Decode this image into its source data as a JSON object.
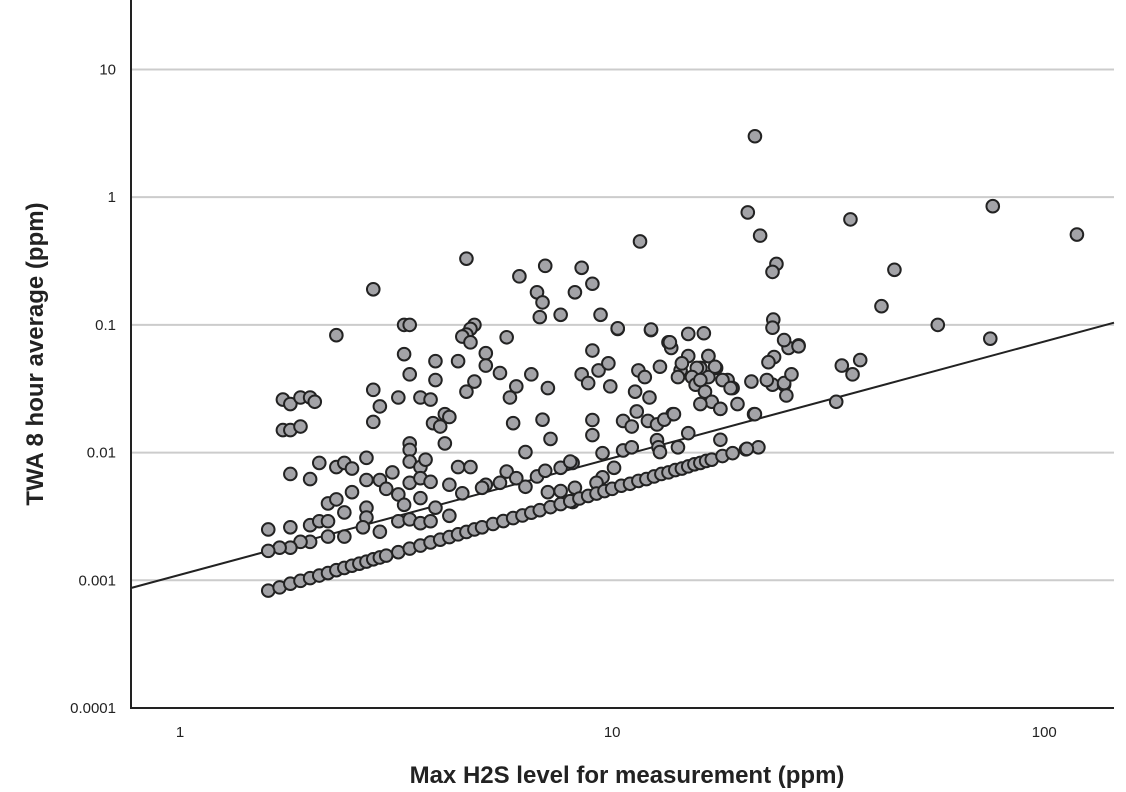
{
  "chart_data": {
    "type": "scatter",
    "title": "",
    "xlabel": "Max H2S level for measurement (ppm)",
    "ylabel": "TWA 8 hour average (ppm)",
    "x_scale": "log",
    "y_scale": "log",
    "xlim": [
      0.77,
      145
    ],
    "ylim": [
      0.0001,
      35
    ],
    "x_ticks": [
      "1",
      "10",
      "100"
    ],
    "x_tick_values": [
      1,
      10,
      100
    ],
    "y_ticks": [
      "0.0001",
      "0.001",
      "0.01",
      "0.1",
      "1",
      "10"
    ],
    "y_tick_values": [
      0.0001,
      0.001,
      0.01,
      0.1,
      1,
      10
    ],
    "grid": "horizontal",
    "colors": {
      "marker_fill": "#a3a3a7",
      "marker_edge": "#222222",
      "line": "#222222",
      "grid": "#cccccc"
    },
    "fit_line": {
      "x": [
        0.77,
        145
      ],
      "y": [
        0.00087,
        0.104
      ]
    },
    "points": [
      [
        21.4,
        3.0
      ],
      [
        20.6,
        0.76
      ],
      [
        22,
        0.5
      ],
      [
        11.6,
        0.45
      ],
      [
        76,
        0.85
      ],
      [
        119,
        0.51
      ],
      [
        35.6,
        0.67
      ],
      [
        45,
        0.27
      ],
      [
        24,
        0.3
      ],
      [
        23.5,
        0.26
      ],
      [
        42,
        0.14
      ],
      [
        56.7,
        0.1
      ],
      [
        75,
        0.078
      ],
      [
        34,
        0.048
      ],
      [
        36,
        0.041
      ],
      [
        37.5,
        0.053
      ],
      [
        33,
        0.025
      ],
      [
        23.6,
        0.11
      ],
      [
        4.6,
        0.33
      ],
      [
        2.8,
        0.19
      ],
      [
        6.1,
        0.24
      ],
      [
        2.3,
        0.083
      ],
      [
        7.0,
        0.29
      ],
      [
        8.5,
        0.28
      ],
      [
        9.0,
        0.21
      ],
      [
        6.7,
        0.18
      ],
      [
        6.9,
        0.15
      ],
      [
        9.4,
        0.12
      ],
      [
        6.8,
        0.115
      ],
      [
        7.6,
        0.12
      ],
      [
        8.2,
        0.18
      ],
      [
        10.3,
        0.093
      ],
      [
        12.3,
        0.091
      ],
      [
        15,
        0.085
      ],
      [
        16.3,
        0.086
      ],
      [
        4.8,
        0.1
      ],
      [
        4.7,
        0.093
      ],
      [
        4.6,
        0.084
      ],
      [
        3.3,
        0.1
      ],
      [
        3.4,
        0.1
      ],
      [
        13.5,
        0.073
      ],
      [
        13.7,
        0.066
      ],
      [
        15,
        0.057
      ],
      [
        16.7,
        0.057
      ],
      [
        17.4,
        0.046
      ],
      [
        18.5,
        0.037
      ],
      [
        19,
        0.032
      ],
      [
        19.5,
        0.024
      ],
      [
        21.3,
        0.02
      ],
      [
        23.5,
        0.034
      ],
      [
        23.7,
        0.056
      ],
      [
        23,
        0.051
      ],
      [
        22.8,
        0.037
      ],
      [
        25.6,
        0.066
      ],
      [
        27,
        0.069
      ],
      [
        25,
        0.034
      ],
      [
        25.3,
        0.028
      ],
      [
        16,
        0.046
      ],
      [
        15.7,
        0.046
      ],
      [
        15.3,
        0.039
      ],
      [
        14.4,
        0.044
      ],
      [
        15.6,
        0.034
      ],
      [
        16.4,
        0.03
      ],
      [
        17,
        0.025
      ],
      [
        17.8,
        0.022
      ],
      [
        18,
        0.037
      ],
      [
        16.7,
        0.039
      ],
      [
        12.9,
        0.047
      ],
      [
        11.5,
        0.044
      ],
      [
        9.9,
        0.033
      ],
      [
        1.73,
        0.026
      ],
      [
        1.8,
        0.024
      ],
      [
        1.9,
        0.027
      ],
      [
        2.0,
        0.027
      ],
      [
        2.05,
        0.025
      ],
      [
        1.73,
        0.015
      ],
      [
        1.8,
        0.015
      ],
      [
        1.9,
        0.016
      ],
      [
        1.8,
        0.0068
      ],
      [
        2.0,
        0.0062
      ],
      [
        2.1,
        0.0083
      ],
      [
        2.3,
        0.0077
      ],
      [
        2.4,
        0.0083
      ],
      [
        2.5,
        0.0075
      ],
      [
        2.7,
        0.0091
      ],
      [
        2.8,
        0.031
      ],
      [
        2.9,
        0.023
      ],
      [
        2.8,
        0.0174
      ],
      [
        3.2,
        0.027
      ],
      [
        3.3,
        0.059
      ],
      [
        3.4,
        0.041
      ],
      [
        3.6,
        0.027
      ],
      [
        3.8,
        0.026
      ],
      [
        3.9,
        0.052
      ],
      [
        3.9,
        0.037
      ],
      [
        4.1,
        0.02
      ],
      [
        3.85,
        0.017
      ],
      [
        4.0,
        0.016
      ],
      [
        4.2,
        0.019
      ],
      [
        4.4,
        0.052
      ],
      [
        4.5,
        0.081
      ],
      [
        4.7,
        0.073
      ],
      [
        4.8,
        0.036
      ],
      [
        4.6,
        0.03
      ],
      [
        5.1,
        0.06
      ],
      [
        5.1,
        0.048
      ],
      [
        5.5,
        0.042
      ],
      [
        5.7,
        0.08
      ],
      [
        6.0,
        0.033
      ],
      [
        5.8,
        0.027
      ],
      [
        5.9,
        0.017
      ],
      [
        4.1,
        0.0118
      ],
      [
        3.4,
        0.0118
      ],
      [
        3.4,
        0.0105
      ],
      [
        4.2,
        0.0056
      ],
      [
        4.4,
        0.0077
      ],
      [
        4.7,
        0.0077
      ],
      [
        5.7,
        0.0071
      ],
      [
        6.3,
        0.0101
      ],
      [
        1.6,
        0.0025
      ],
      [
        1.8,
        0.0026
      ],
      [
        2.0,
        0.0027
      ],
      [
        2.1,
        0.0029
      ],
      [
        2.2,
        0.004
      ],
      [
        2.3,
        0.0043
      ],
      [
        2.4,
        0.0034
      ],
      [
        2.5,
        0.0049
      ],
      [
        2.7,
        0.0061
      ],
      [
        2.7,
        0.0037
      ],
      [
        2.7,
        0.0031
      ],
      [
        2.9,
        0.0061
      ],
      [
        3.0,
        0.0052
      ],
      [
        3.1,
        0.007
      ],
      [
        3.2,
        0.0047
      ],
      [
        3.4,
        0.0085
      ],
      [
        3.4,
        0.0058
      ],
      [
        3.6,
        0.0077
      ],
      [
        3.6,
        0.0063
      ],
      [
        3.6,
        0.0044
      ],
      [
        3.8,
        0.0059
      ],
      [
        3.9,
        0.0037
      ],
      [
        3.7,
        0.0088
      ],
      [
        3.3,
        0.0039
      ],
      [
        3.2,
        0.0029
      ],
      [
        3.4,
        0.003
      ],
      [
        3.6,
        0.0028
      ],
      [
        3.8,
        0.0029
      ],
      [
        4.2,
        0.0032
      ],
      [
        2.9,
        0.0024
      ],
      [
        2.65,
        0.0026
      ],
      [
        2.4,
        0.0022
      ],
      [
        2.2,
        0.0022
      ],
      [
        2.0,
        0.002
      ],
      [
        1.9,
        0.002
      ],
      [
        1.8,
        0.0018
      ],
      [
        1.7,
        0.0018
      ],
      [
        1.6,
        0.0017
      ],
      [
        2.2,
        0.0029
      ],
      [
        7.1,
        0.032
      ],
      [
        6.5,
        0.041
      ],
      [
        8.5,
        0.041
      ],
      [
        8.8,
        0.035
      ],
      [
        9.3,
        0.044
      ],
      [
        9.8,
        0.05
      ],
      [
        9.0,
        0.063
      ],
      [
        10.3,
        0.094
      ],
      [
        12.3,
        0.092
      ],
      [
        13.6,
        0.073
      ],
      [
        11.9,
        0.039
      ],
      [
        11.3,
        0.03
      ],
      [
        12.2,
        0.027
      ],
      [
        14.2,
        0.039
      ],
      [
        14.5,
        0.05
      ],
      [
        16,
        0.037
      ],
      [
        16,
        0.024
      ],
      [
        16.7,
        0.057
      ],
      [
        17.3,
        0.047
      ],
      [
        17.8,
        0.022
      ],
      [
        18.8,
        0.032
      ],
      [
        21,
        0.036
      ],
      [
        23.5,
        0.095
      ],
      [
        25,
        0.076
      ],
      [
        27,
        0.068
      ],
      [
        25,
        0.035
      ],
      [
        26,
        0.041
      ],
      [
        21.4,
        0.02
      ],
      [
        21.8,
        0.011
      ],
      [
        20.4,
        0.0106
      ],
      [
        17.8,
        0.0126
      ],
      [
        13.8,
        0.02
      ],
      [
        11.4,
        0.021
      ],
      [
        9,
        0.018
      ],
      [
        9,
        0.0137
      ],
      [
        6.9,
        0.0181
      ],
      [
        7.2,
        0.0128
      ],
      [
        10.6,
        0.0177
      ],
      [
        11.1,
        0.016
      ],
      [
        12.1,
        0.0177
      ],
      [
        12.7,
        0.0166
      ],
      [
        13.2,
        0.0181
      ],
      [
        13.9,
        0.02
      ],
      [
        12.7,
        0.0125
      ],
      [
        15,
        0.0142
      ],
      [
        14.2,
        0.011
      ],
      [
        10.6,
        0.0104
      ],
      [
        11.1,
        0.011
      ],
      [
        12.8,
        0.011
      ],
      [
        12.9,
        0.0101
      ],
      [
        10.1,
        0.0076
      ],
      [
        9.5,
        0.0064
      ],
      [
        8.1,
        0.0083
      ],
      [
        7.6,
        0.0076
      ],
      [
        6.7,
        0.0065
      ],
      [
        7.1,
        0.0049
      ],
      [
        7.6,
        0.005
      ],
      [
        8.2,
        0.0053
      ],
      [
        6.3,
        0.0054
      ],
      [
        9.2,
        0.0058
      ],
      [
        8.1,
        0.0041
      ],
      [
        5.1,
        0.0056
      ],
      [
        4.5,
        0.0048
      ],
      [
        5.0,
        0.0053
      ],
      [
        5.5,
        0.0058
      ],
      [
        6,
        0.0063
      ],
      [
        7,
        0.0072
      ],
      [
        8,
        0.0085
      ],
      [
        9.5,
        0.0099
      ],
      [
        1.6,
        0.00083
      ],
      [
        1.7,
        0.00088
      ],
      [
        1.8,
        0.00094
      ],
      [
        1.9,
        0.00099
      ],
      [
        2.0,
        0.00104
      ],
      [
        2.1,
        0.00109
      ],
      [
        2.2,
        0.00114
      ],
      [
        2.3,
        0.0012
      ],
      [
        2.4,
        0.00125
      ],
      [
        2.5,
        0.0013
      ],
      [
        2.6,
        0.00135
      ],
      [
        2.7,
        0.0014
      ],
      [
        2.8,
        0.00146
      ],
      [
        2.9,
        0.00151
      ],
      [
        3.0,
        0.00156
      ],
      [
        3.2,
        0.00166
      ],
      [
        3.4,
        0.00177
      ],
      [
        3.6,
        0.00187
      ],
      [
        3.8,
        0.00198
      ],
      [
        4.0,
        0.00208
      ],
      [
        4.2,
        0.00218
      ],
      [
        4.4,
        0.00229
      ],
      [
        4.6,
        0.00239
      ],
      [
        4.8,
        0.0025
      ],
      [
        5.0,
        0.0026
      ],
      [
        5.3,
        0.00276
      ],
      [
        5.6,
        0.00291
      ],
      [
        5.9,
        0.00307
      ],
      [
        6.2,
        0.00322
      ],
      [
        6.5,
        0.00338
      ],
      [
        6.8,
        0.00354
      ],
      [
        7.2,
        0.00374
      ],
      [
        7.6,
        0.00395
      ],
      [
        8.0,
        0.00416
      ],
      [
        8.4,
        0.00437
      ],
      [
        8.8,
        0.00458
      ],
      [
        9.2,
        0.00478
      ],
      [
        9.6,
        0.005
      ],
      [
        10,
        0.0052
      ],
      [
        10.5,
        0.0055
      ],
      [
        11,
        0.0057
      ],
      [
        11.5,
        0.006
      ],
      [
        12,
        0.0062
      ],
      [
        12.5,
        0.0065
      ],
      [
        13,
        0.0068
      ],
      [
        13.5,
        0.007
      ],
      [
        14,
        0.0073
      ],
      [
        14.5,
        0.0075
      ],
      [
        15,
        0.0078
      ],
      [
        15.5,
        0.0081
      ],
      [
        16,
        0.0083
      ],
      [
        16.5,
        0.0086
      ],
      [
        17,
        0.0088
      ],
      [
        18,
        0.0094
      ],
      [
        19,
        0.0099
      ],
      [
        20.5,
        0.0107
      ]
    ]
  }
}
